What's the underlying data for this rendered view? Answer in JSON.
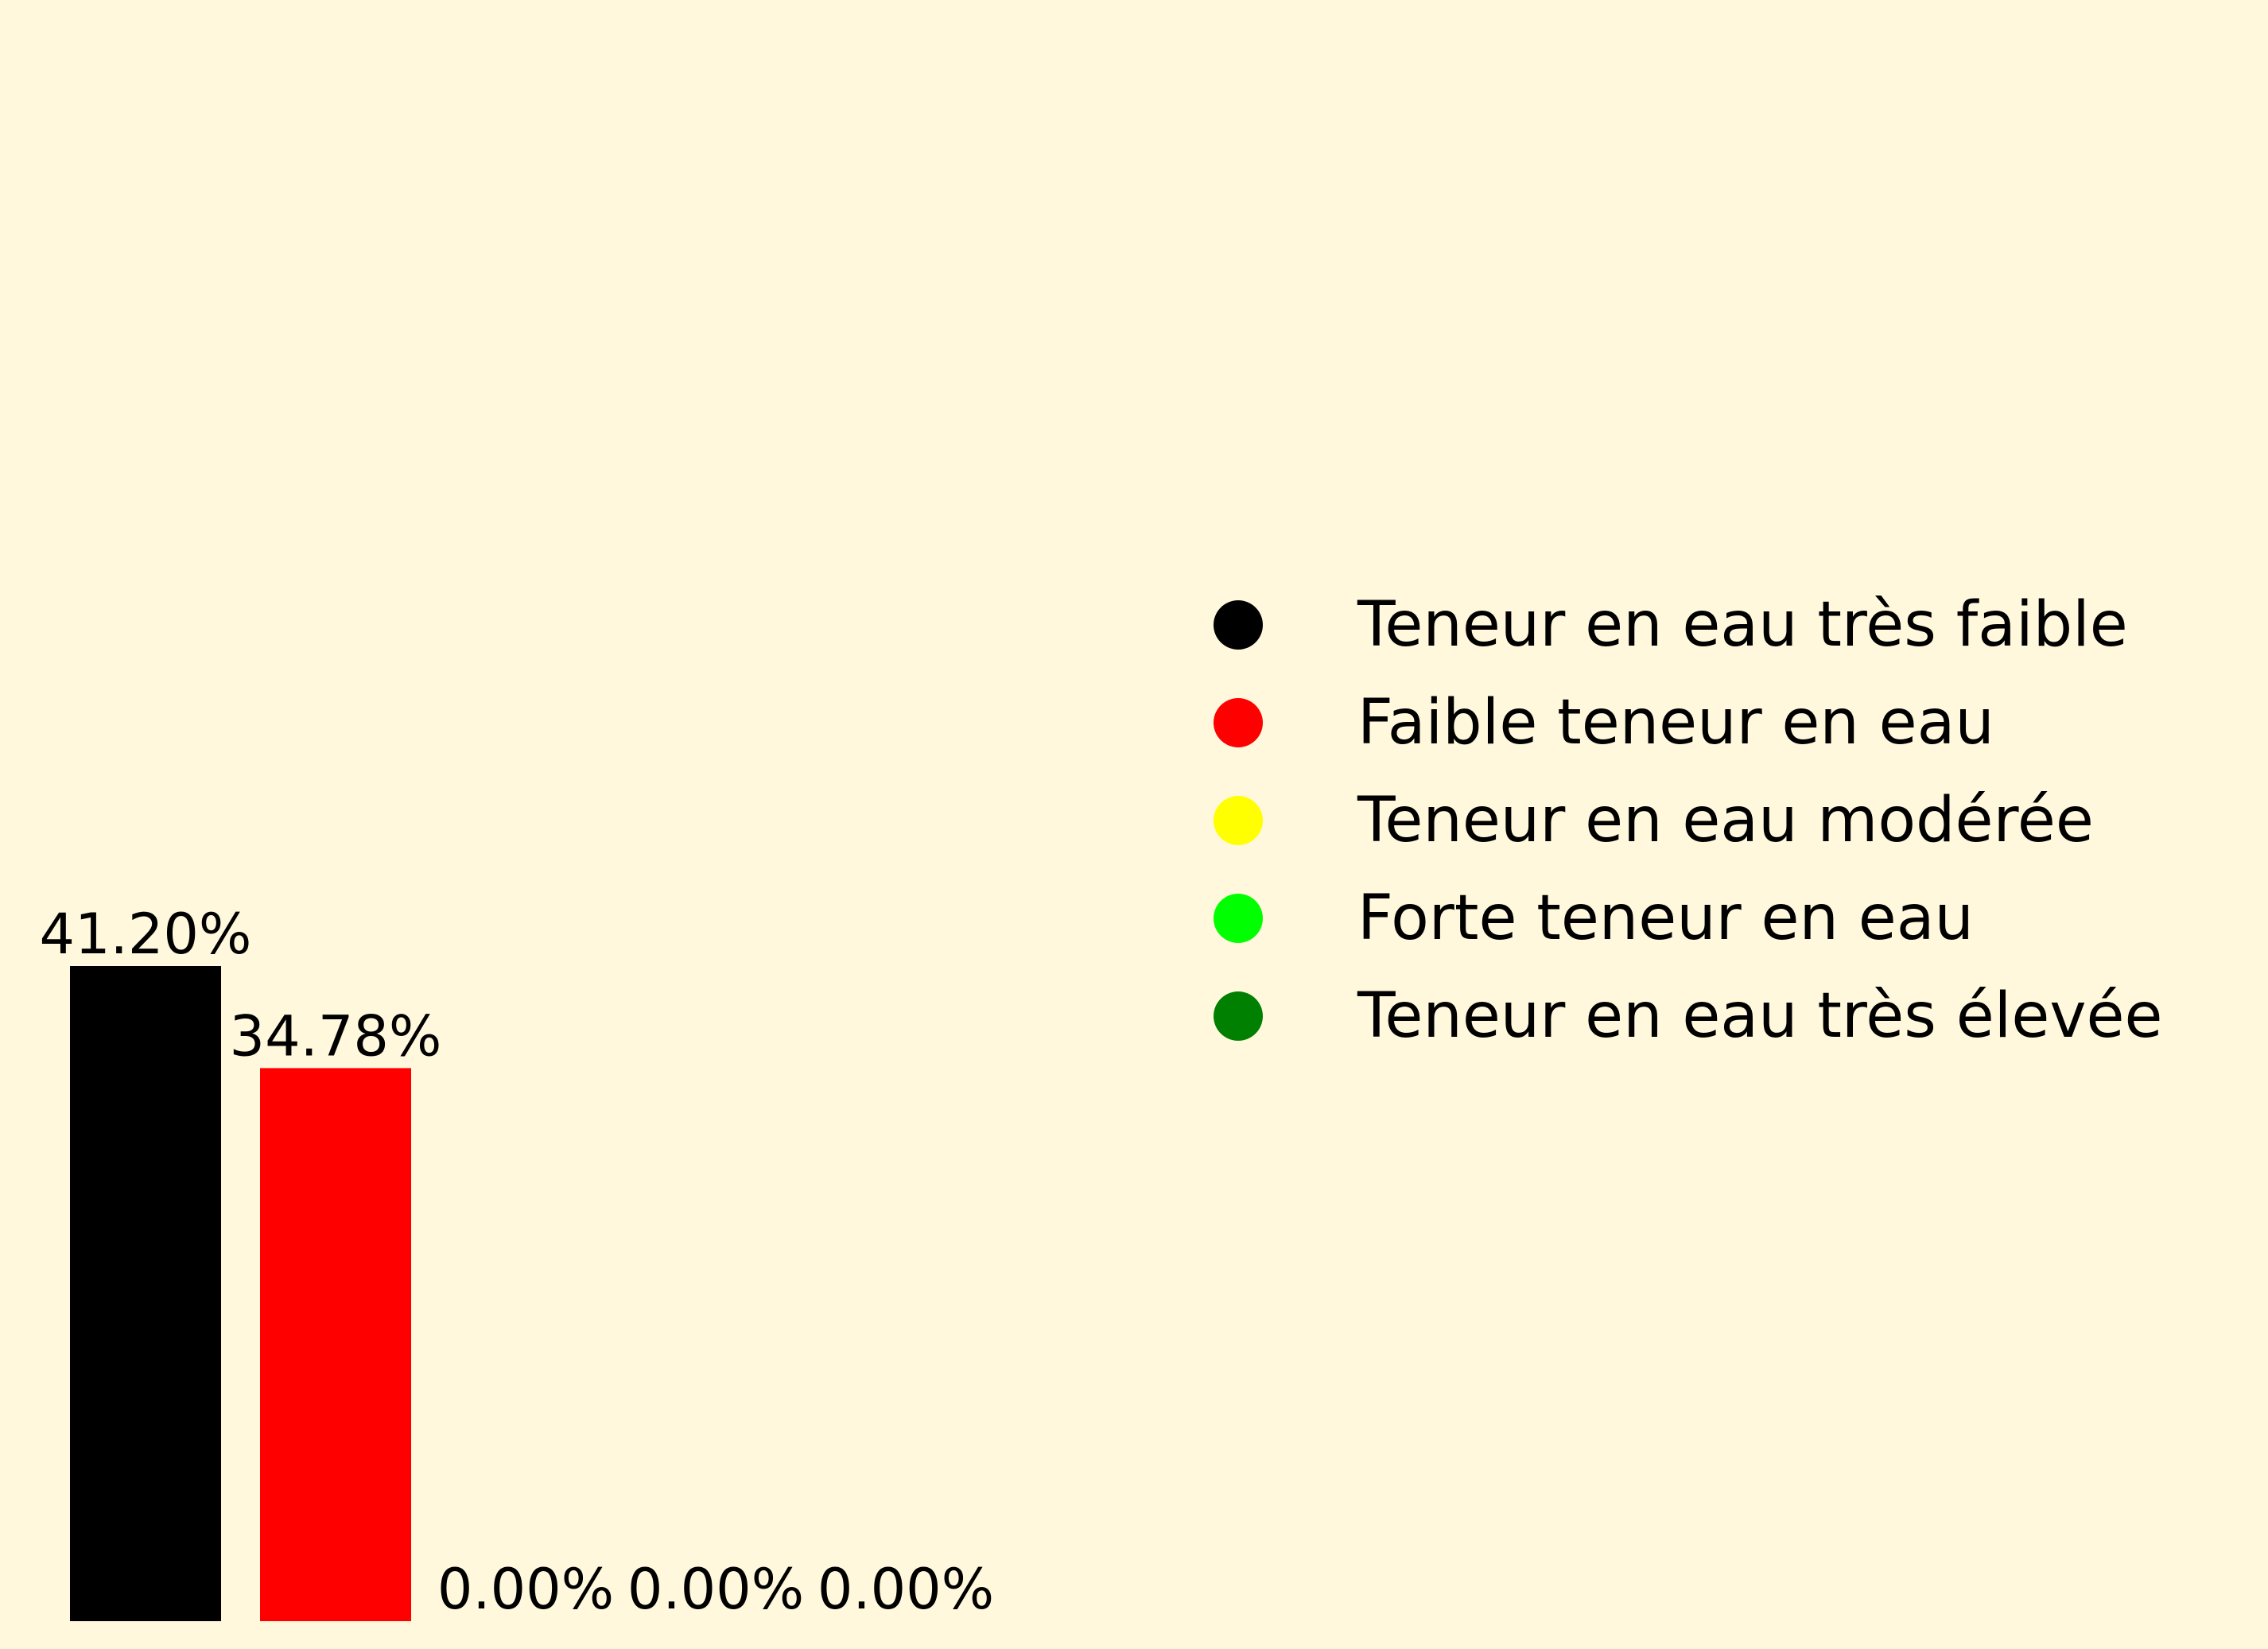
{
  "chart_data": {
    "type": "bar",
    "categories": [
      "Teneur en eau très faible",
      "Faible teneur en eau",
      "Teneur en eau modérée",
      "Forte teneur en eau",
      "Teneur en eau très élevée"
    ],
    "values": [
      41.2,
      34.78,
      0.0,
      0.0,
      0.0
    ],
    "value_labels": [
      "41.20%",
      "34.78%",
      "0.00%",
      "0.00%",
      "0.00%"
    ],
    "colors": [
      "#000000",
      "#ff0000",
      "#ffff00",
      "#00ff00",
      "#008000"
    ],
    "title": "",
    "xlabel": "",
    "ylabel": "",
    "ylim": [
      0,
      100
    ],
    "axes_visible": false,
    "grid": false,
    "legend": {
      "placement": "center-right",
      "marker": "circle",
      "entries": [
        "Teneur en eau très faible",
        "Faible teneur en eau",
        "Teneur en eau modérée",
        "Forte teneur en eau",
        "Teneur en eau très élevée"
      ]
    },
    "background_color": "#fff8dc"
  }
}
